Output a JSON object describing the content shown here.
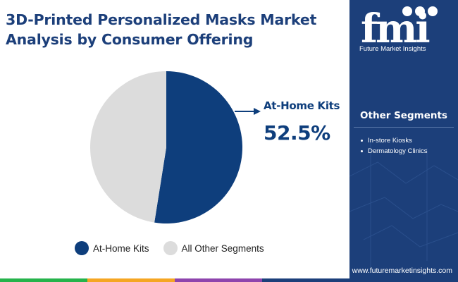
{
  "title_lines": [
    "3D-Printed Personalized Masks Market",
    "Analysis by Consumer Offering"
  ],
  "colors": {
    "title": "#1c3f7a",
    "primary": "#0e3e7c",
    "secondary": "#dcdcdc",
    "sidebar": "#1c3f7a",
    "bottom_bar": [
      "#25b34b",
      "#f5a623",
      "#8e44ad",
      "#1c3f7a"
    ]
  },
  "chart_data": {
    "type": "pie",
    "series": [
      {
        "name": "At-Home Kits",
        "value": 52.5
      },
      {
        "name": "All Other Segments",
        "value": 47.5
      }
    ],
    "start_angle_deg": 0,
    "direction": "clockwise",
    "legend_position": "bottom",
    "callout": {
      "label": "At-Home Kits",
      "value": "52.5%"
    }
  },
  "sidebar": {
    "logo_letters": "fmi",
    "logo_text": "Future Market Insights",
    "other_segments_title": "Other Segments",
    "other_segments": [
      "In-store Kiosks",
      "Dermatology Clinics"
    ],
    "url": "www.futuremarketinsights.com"
  }
}
